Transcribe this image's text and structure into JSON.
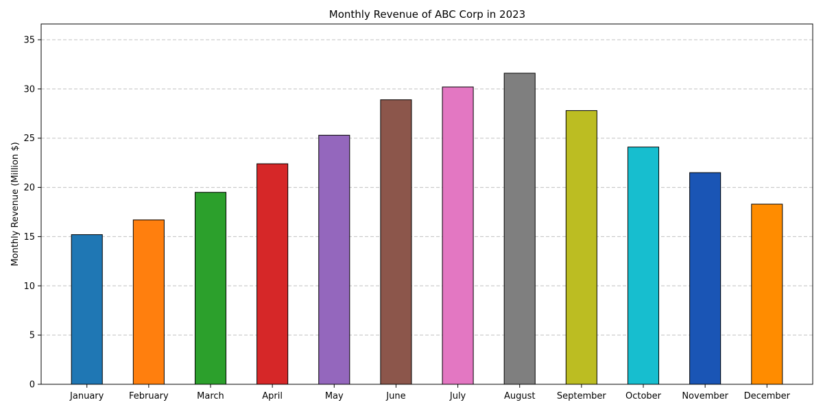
{
  "chart_data": {
    "type": "bar",
    "title": "Monthly Revenue of ABC Corp in 2023",
    "xlabel": "",
    "ylabel": "Monthly Revenue (Million $)",
    "categories": [
      "January",
      "February",
      "March",
      "April",
      "May",
      "June",
      "July",
      "August",
      "September",
      "October",
      "November",
      "December"
    ],
    "values": [
      15.2,
      16.7,
      19.5,
      22.4,
      25.3,
      28.9,
      30.2,
      31.6,
      27.8,
      24.1,
      21.5,
      18.3
    ],
    "colors": [
      "#1f77b4",
      "#ff7f0e",
      "#2ca02c",
      "#d62728",
      "#9467bd",
      "#8c564b",
      "#e377c2",
      "#7f7f7f",
      "#bcbd22",
      "#17becf",
      "#1a55b5",
      "#ff8c00"
    ],
    "ylim": [
      0,
      36.6
    ],
    "yticks": [
      0,
      5,
      10,
      15,
      20,
      25,
      30,
      35
    ],
    "grid": true,
    "grid_axis": "y",
    "legend": false
  }
}
